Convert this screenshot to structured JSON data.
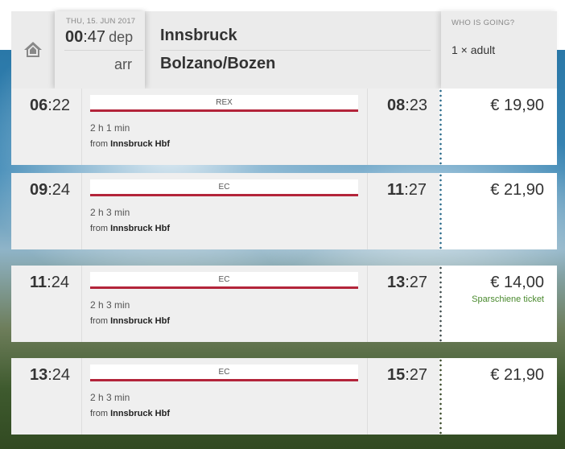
{
  "header": {
    "date": "THU, 15. JUN 2017",
    "dep_hh": "00",
    "dep_mm": ":47",
    "dep_label": "dep",
    "arr_label": "arr",
    "from_station": "Innsbruck",
    "to_station": "Bolzano/Bozen",
    "pax_label": "WHO IS GOING?",
    "pax_value": "1 × adult",
    "home_icon": "home-icon"
  },
  "connections": [
    {
      "dep_hh": "06",
      "dep_mm": ":22",
      "product": "REX",
      "duration": "2 h 1 min",
      "from_prefix": "from",
      "from_station": "Innsbruck Hbf",
      "arr_hh": "08",
      "arr_mm": ":23",
      "price": "€ 19,90",
      "note": "",
      "dot_color": "#2a6a8a"
    },
    {
      "dep_hh": "09",
      "dep_mm": ":24",
      "product": "EC",
      "duration": "2 h 3 min",
      "from_prefix": "from",
      "from_station": "Innsbruck Hbf",
      "arr_hh": "11",
      "arr_mm": ":27",
      "price": "€ 21,90",
      "note": "",
      "dot_color": "#2a6a8a"
    },
    {
      "dep_hh": "11",
      "dep_mm": ":24",
      "product": "EC",
      "duration": "2 h 3 min",
      "from_prefix": "from",
      "from_station": "Innsbruck Hbf",
      "arr_hh": "13",
      "arr_mm": ":27",
      "price": "€ 14,00",
      "note": "Sparschiene ticket",
      "dot_color": "#3d4a4a"
    },
    {
      "dep_hh": "13",
      "dep_mm": ":24",
      "product": "EC",
      "duration": "2 h 3 min",
      "from_prefix": "from",
      "from_station": "Innsbruck Hbf",
      "arr_hh": "15",
      "arr_mm": ":27",
      "price": "€ 21,90",
      "note": "",
      "dot_color": "#3a4a2a"
    }
  ],
  "colors": {
    "product_line": "#b3243a",
    "note_green": "#4a8a2e"
  }
}
